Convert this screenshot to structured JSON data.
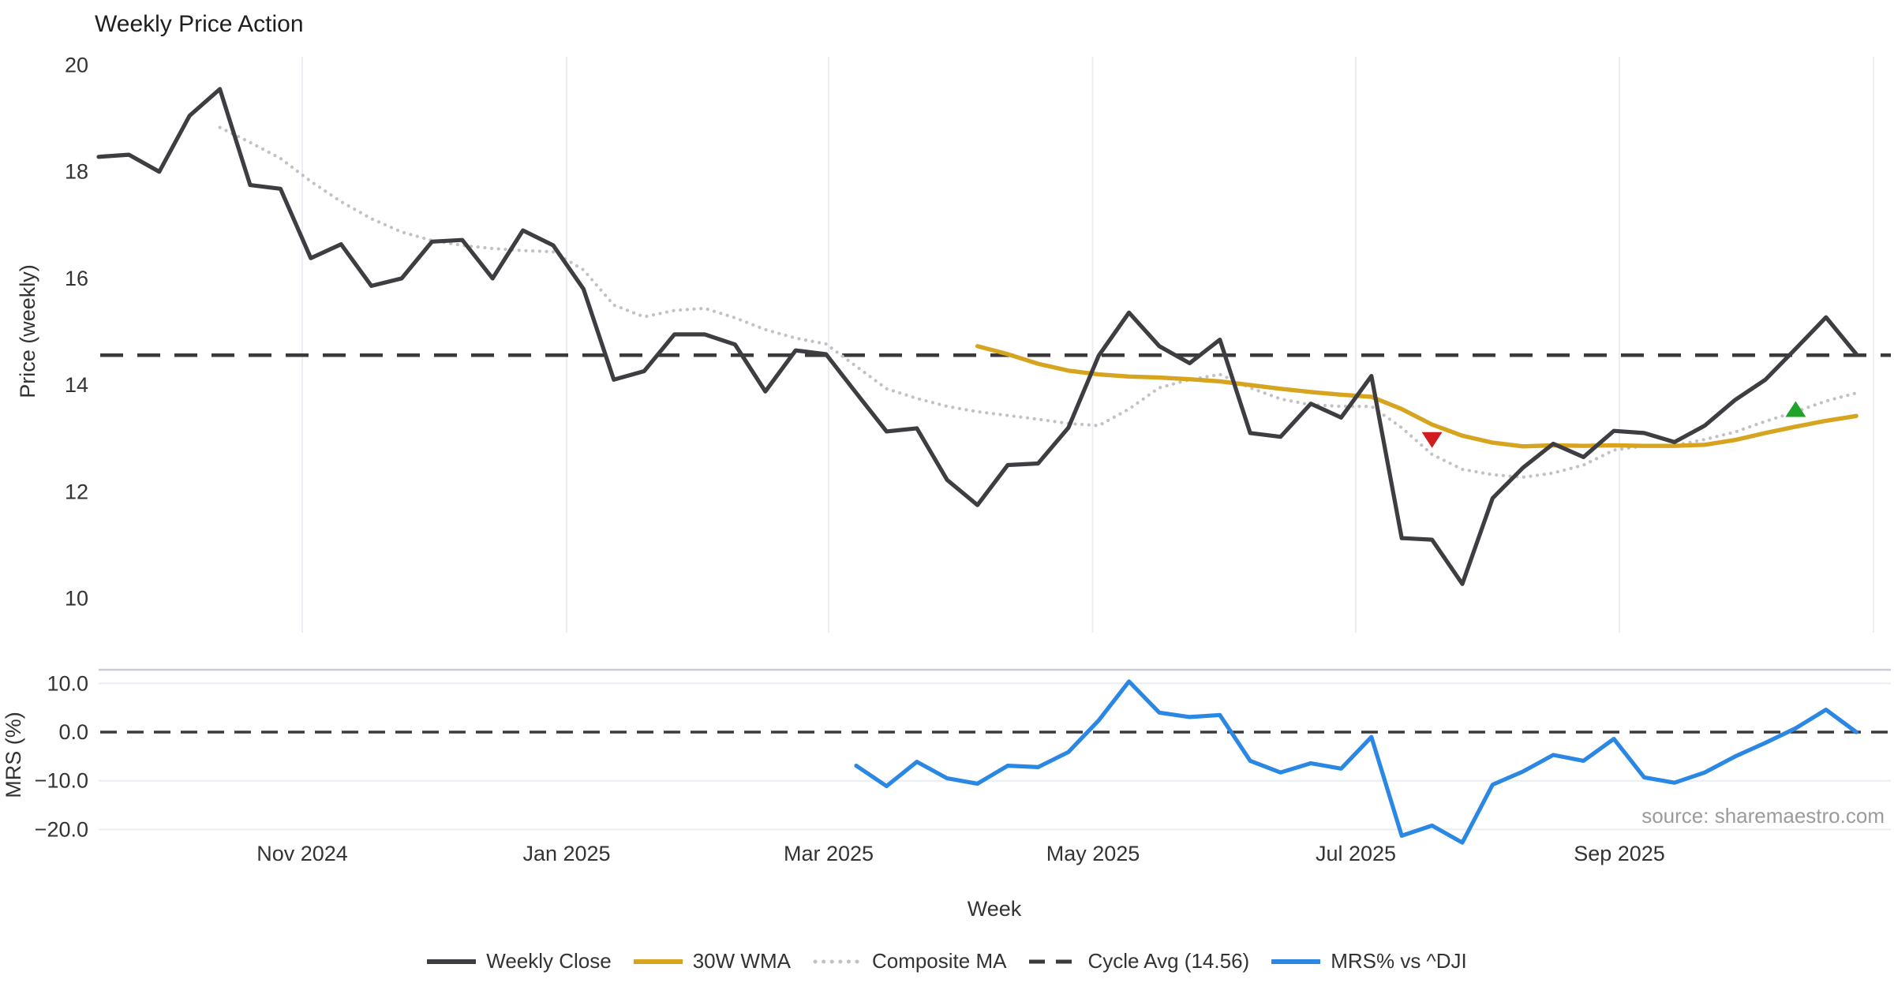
{
  "title": "Weekly Price Action",
  "source_note": "source: sharemaestro.com",
  "legend": {
    "weekly_close": "Weekly Close",
    "wma": "30W WMA",
    "composite": "Composite MA",
    "cycle_avg": "Cycle Avg (14.56)",
    "mrs": "MRS% vs ^DJI"
  },
  "colors": {
    "weekly_close": "#3d3d42",
    "wma": "#d7a41f",
    "composite": "#c2c2c2",
    "cycle_avg": "#3a3a3a",
    "mrs": "#2b87e4",
    "marker_down": "#cf1d20",
    "marker_up": "#1fa32a",
    "grid": "#eaedf3"
  },
  "chart_data": {
    "type": "line",
    "title": "Weekly Price Action",
    "xlabel": "Week",
    "freq": "weekly",
    "approx_start_date": "2024-09-13",
    "price_panel": {
      "ylabel": "Price (weekly)",
      "ylim": [
        9.4,
        20.3
      ],
      "price_ticks": [
        "20",
        "18",
        "16",
        "14",
        "12",
        "10"
      ],
      "grid": "vertical-only"
    },
    "mrs_panel": {
      "ylabel": "MRS (%)",
      "ylim": [
        -24.5,
        13.0
      ],
      "mrs_ticks": [
        "10.0",
        "0.0",
        "−10.0",
        "−20.0"
      ],
      "zero_line": 0.0,
      "grid": "horizontal-faint"
    },
    "x_ticks": [
      {
        "label": "Nov 2024",
        "k": 6.72
      },
      {
        "label": "Jan 2025",
        "k": 15.44
      },
      {
        "label": "Mar 2025",
        "k": 24.09
      },
      {
        "label": "May 2025",
        "k": 32.8
      },
      {
        "label": "Jul 2025",
        "k": 41.48
      },
      {
        "label": "Sep 2025",
        "k": 50.18
      },
      {
        "label": "",
        "k": 58.57
      }
    ],
    "cycle_avg": 14.56,
    "series": [
      {
        "name": "Weekly Close",
        "panel": "price",
        "start_index": 0,
        "style": "solid",
        "values": [
          18.28,
          18.32,
          18.0,
          19.05,
          19.55,
          17.75,
          17.68,
          16.38,
          16.64,
          15.86,
          16.0,
          16.69,
          16.72,
          16.0,
          16.9,
          16.62,
          15.8,
          14.1,
          14.26,
          14.95,
          14.95,
          14.76,
          13.88,
          14.65,
          14.58,
          13.85,
          13.13,
          13.19,
          12.22,
          11.75,
          12.5,
          12.53,
          13.2,
          14.55,
          15.36,
          14.73,
          14.41,
          14.85,
          13.1,
          13.03,
          13.65,
          13.39,
          14.17,
          11.13,
          11.1,
          10.27,
          11.88,
          12.45,
          12.9,
          12.65,
          13.14,
          13.1,
          12.93,
          13.24,
          13.72,
          14.1,
          14.68,
          15.27,
          14.58
        ]
      },
      {
        "name": "30W WMA",
        "panel": "price",
        "start_index": 29,
        "style": "solid",
        "values": [
          14.73,
          14.58,
          14.4,
          14.27,
          14.2,
          14.16,
          14.14,
          14.11,
          14.07,
          14.0,
          13.93,
          13.87,
          13.82,
          13.78,
          13.55,
          13.26,
          13.05,
          12.92,
          12.85,
          12.87,
          12.86,
          12.87,
          12.86,
          12.86,
          12.88,
          12.97,
          13.1,
          13.22,
          13.33,
          13.42
        ]
      },
      {
        "name": "Composite MA",
        "panel": "price",
        "start_index": 4,
        "style": "dotted",
        "values": [
          18.83,
          18.55,
          18.25,
          17.82,
          17.44,
          17.12,
          16.87,
          16.71,
          16.62,
          16.56,
          16.52,
          16.5,
          16.16,
          15.5,
          15.28,
          15.4,
          15.44,
          15.26,
          15.04,
          14.88,
          14.77,
          14.35,
          13.93,
          13.75,
          13.6,
          13.5,
          13.43,
          13.36,
          13.28,
          13.24,
          13.55,
          13.95,
          14.1,
          14.2,
          13.95,
          13.74,
          13.63,
          13.6,
          13.6,
          13.2,
          12.7,
          12.42,
          12.32,
          12.27,
          12.35,
          12.5,
          12.78,
          12.86,
          12.87,
          12.98,
          13.12,
          13.32,
          13.5,
          13.7,
          13.85
        ]
      },
      {
        "name": "MRS% vs ^DJI",
        "panel": "mrs",
        "start_index": 25,
        "style": "solid",
        "values": [
          -6.9,
          -11.1,
          -6.1,
          -9.5,
          -10.6,
          -6.9,
          -7.2,
          -4.1,
          2.4,
          10.4,
          4.0,
          3.1,
          3.5,
          -5.9,
          -8.3,
          -6.4,
          -7.5,
          -1.0,
          -21.3,
          -19.2,
          -22.7,
          -10.8,
          -8.1,
          -4.7,
          -5.9,
          -1.4,
          -9.3,
          -10.4,
          -8.3,
          -5.0,
          -2.2,
          0.8,
          4.6,
          0.0
        ]
      }
    ],
    "markers": [
      {
        "direction": "down",
        "week_index": 44,
        "price": 12.97,
        "color": "#cf1d20",
        "meaning": "bearish-signal"
      },
      {
        "direction": "up",
        "week_index": 56,
        "price": 13.55,
        "color": "#1fa32a",
        "meaning": "bullish-signal"
      }
    ]
  }
}
